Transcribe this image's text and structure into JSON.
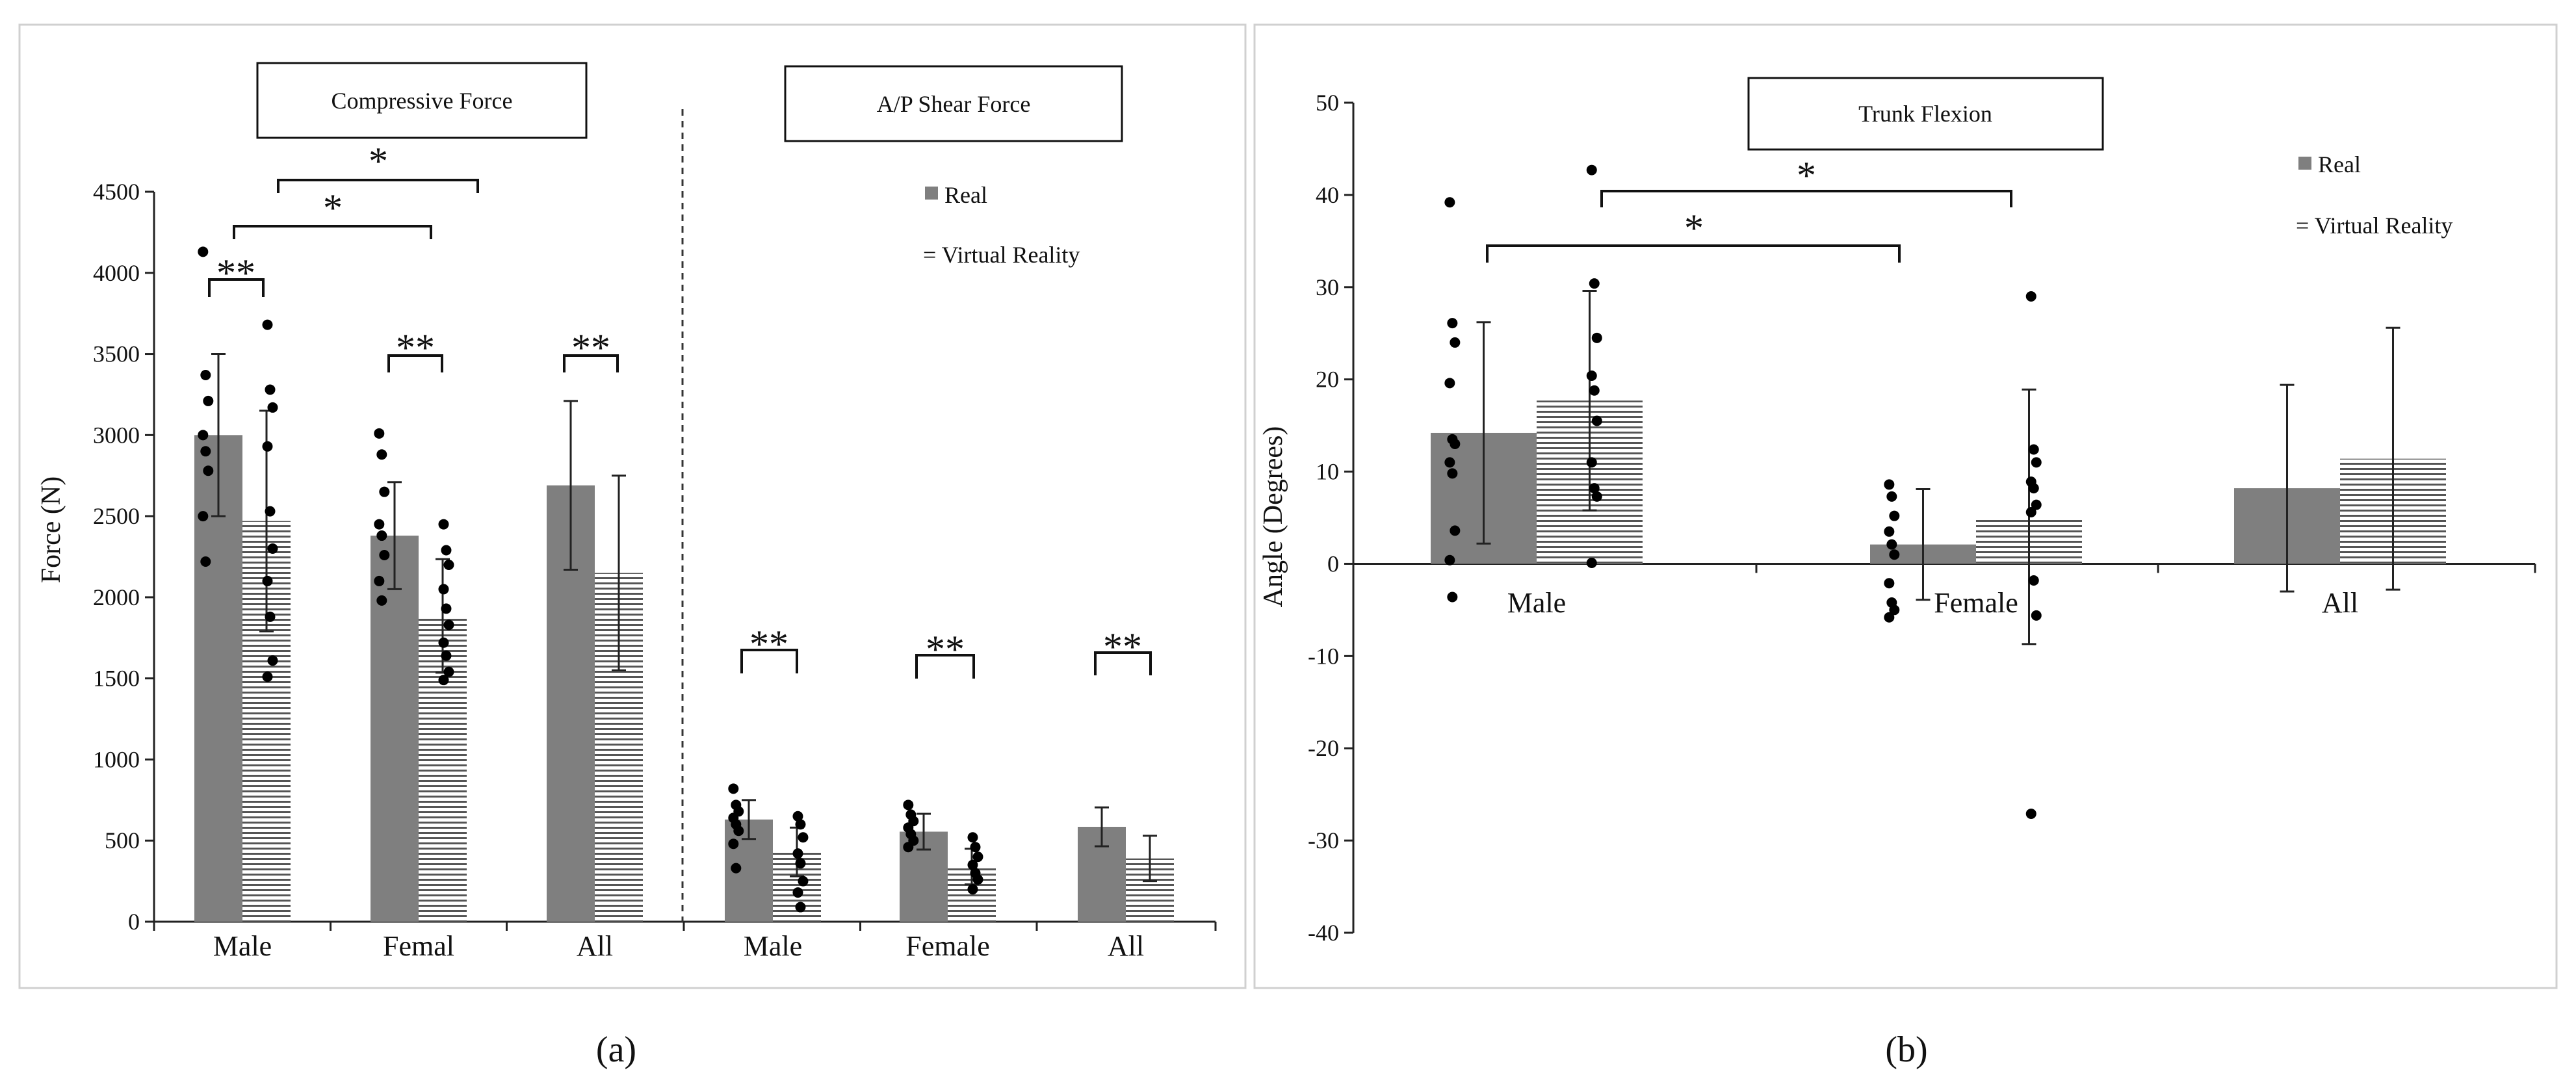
{
  "colors": {
    "real": "#7f7f7f",
    "vr_stripe": "#555555",
    "vr_bg": "#ffffff"
  },
  "legend": {
    "real": "Real",
    "vr": "= Virtual Reality"
  },
  "panel_labels": {
    "a": "(a)",
    "b": "(b)"
  },
  "chart_data": [
    {
      "type": "bar",
      "id": "a",
      "ylabel": "Force (N)",
      "ylim": [
        0,
        4500
      ],
      "yticks": [
        0,
        500,
        1000,
        1500,
        2000,
        2500,
        3000,
        3500,
        4000,
        4500
      ],
      "sections": [
        {
          "title": "Compressive Force",
          "categories": [
            "Male",
            "Femal",
            "All"
          ]
        },
        {
          "title": "A/P Shear Force",
          "categories": [
            "Male",
            "Female",
            "All"
          ]
        }
      ],
      "series": [
        {
          "name": "Real",
          "values": [
            3000,
            2380,
            2690,
            630,
            555,
            585
          ],
          "err": [
            500,
            330,
            520,
            120,
            110,
            120
          ]
        },
        {
          "name": "Virtual Reality",
          "values": [
            2470,
            1885,
            2150,
            430,
            340,
            390
          ],
          "err": [
            680,
            350,
            600,
            150,
            110,
            140
          ]
        }
      ],
      "points": {
        "real": [
          [
            4130,
            3370,
            3210,
            3000,
            2900,
            2780,
            2500,
            2220
          ],
          [
            3010,
            2880,
            2650,
            2450,
            2380,
            2260,
            2100,
            1980
          ],
          [],
          [
            820,
            720,
            680,
            640,
            600,
            560,
            480,
            330
          ],
          [
            720,
            660,
            620,
            580,
            540,
            500,
            460
          ],
          []
        ],
        "vr": [
          [
            3680,
            3280,
            3170,
            2930,
            2530,
            2300,
            2100,
            1880,
            1610,
            1510
          ],
          [
            2450,
            2290,
            2200,
            2050,
            1930,
            1830,
            1720,
            1640,
            1540,
            1490
          ],
          [],
          [
            650,
            600,
            520,
            420,
            360,
            250,
            180,
            90
          ],
          [
            520,
            460,
            400,
            350,
            300,
            260,
            200
          ],
          []
        ]
      },
      "significance": [
        {
          "label": "**"
        },
        {
          "label": "*"
        },
        {
          "label": "*"
        },
        {
          "label": "**"
        },
        {
          "label": "**"
        },
        {
          "label": "**"
        },
        {
          "label": "**"
        },
        {
          "label": "**"
        }
      ]
    },
    {
      "type": "bar",
      "id": "b",
      "title": "Trunk Flexion",
      "ylabel": "Angle (Degrees)",
      "ylim": [
        -40,
        50
      ],
      "yticks": [
        -40,
        -30,
        -20,
        -10,
        0,
        10,
        20,
        30,
        40,
        50
      ],
      "categories": [
        "Male",
        "Female",
        "All"
      ],
      "series": [
        {
          "name": "Real",
          "values": [
            14.2,
            2.1,
            8.2
          ],
          "err": [
            12.0,
            6.0,
            11.2
          ]
        },
        {
          "name": "Virtual Reality",
          "values": [
            17.7,
            5.1,
            11.4
          ],
          "err": [
            11.9,
            13.8,
            14.2
          ]
        }
      ],
      "points": {
        "real": [
          [
            39.2,
            26.1,
            24.0,
            19.6,
            13.5,
            13.0,
            11.0,
            9.8,
            3.6,
            0.4,
            -3.6
          ],
          [
            8.6,
            7.3,
            5.2,
            3.5,
            2.1,
            1.0,
            -2.1,
            -4.2,
            -5.0,
            -5.8
          ],
          []
        ],
        "vr": [
          [
            42.7,
            30.4,
            24.5,
            20.4,
            18.8,
            15.5,
            11.0,
            8.2,
            7.3,
            0.1
          ],
          [
            29.0,
            12.4,
            11.0,
            8.9,
            8.2,
            6.4,
            5.6,
            -1.8,
            -5.6,
            -27.1
          ],
          []
        ]
      },
      "significance": [
        {
          "label": "*"
        },
        {
          "label": "*"
        }
      ]
    }
  ]
}
